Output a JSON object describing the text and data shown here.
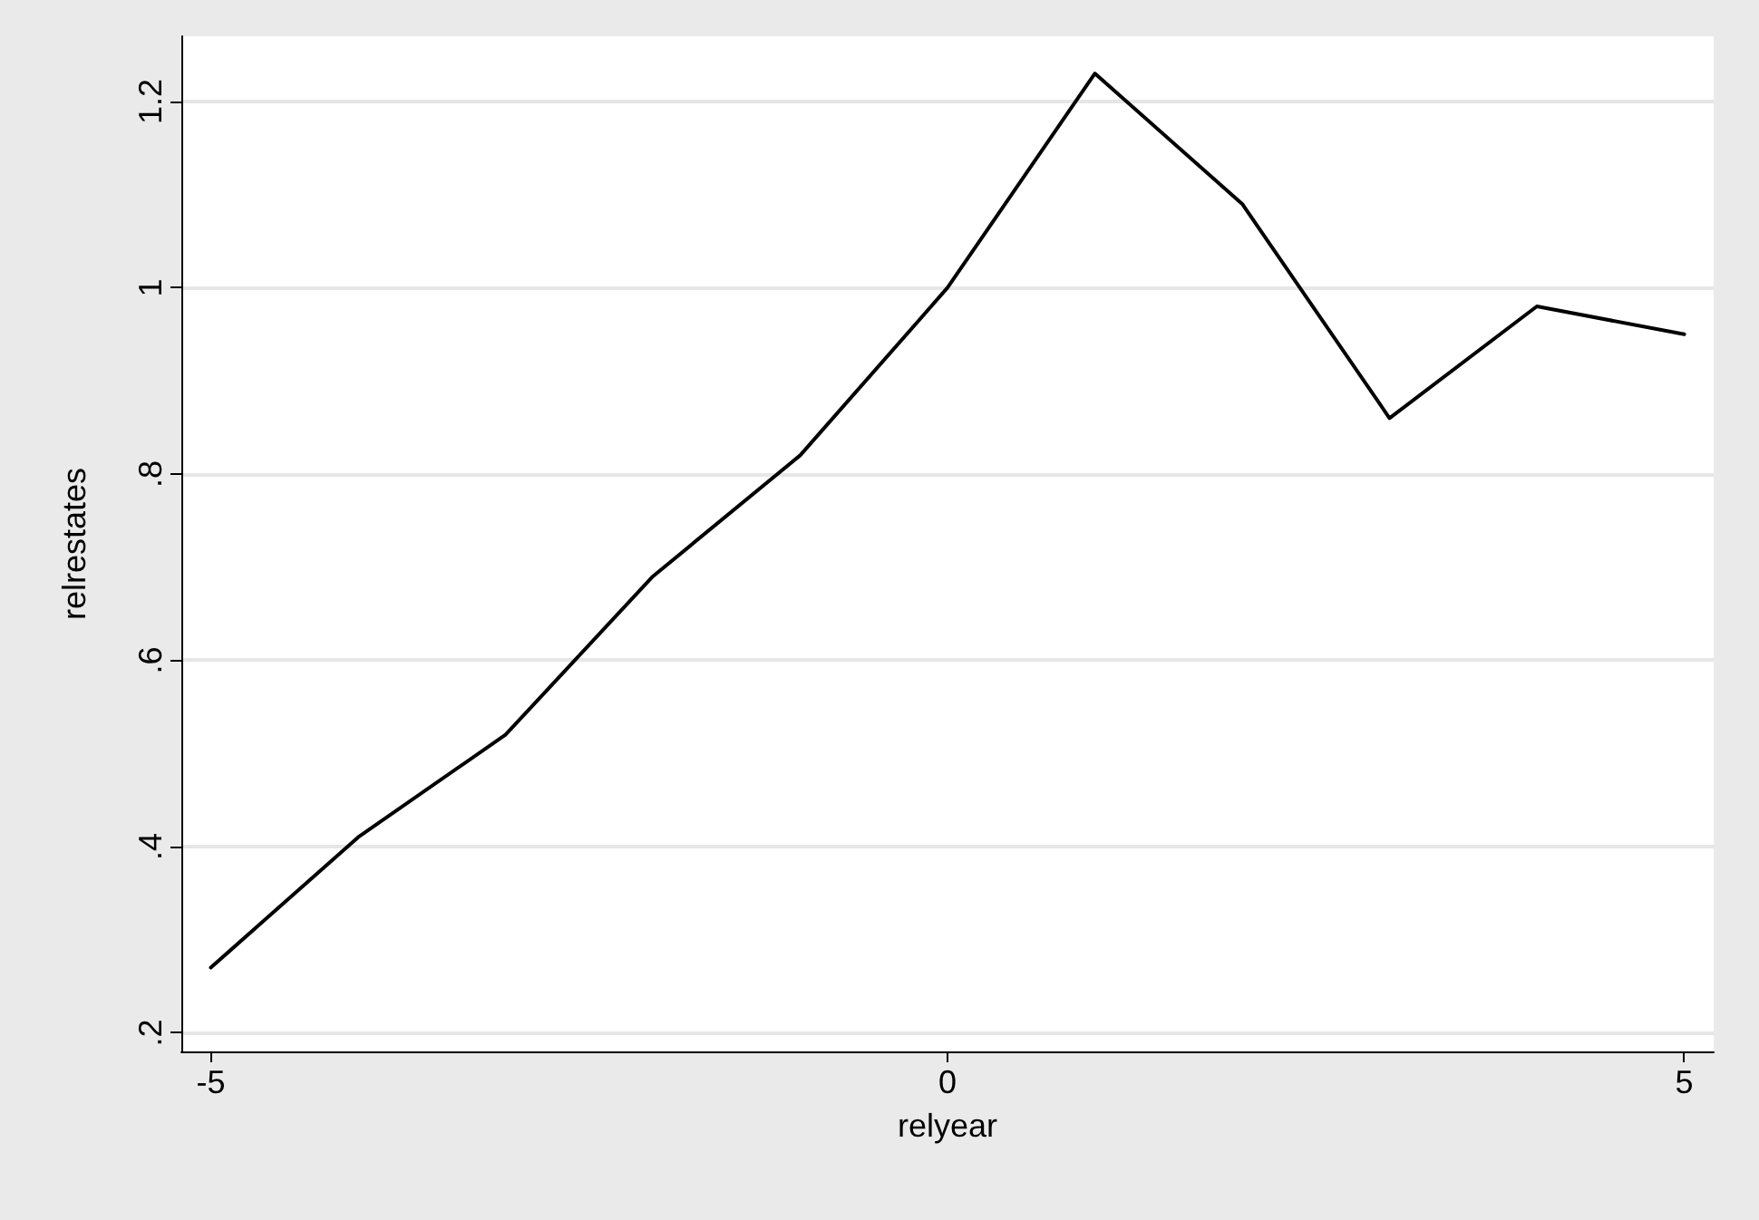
{
  "chart_data": {
    "type": "line",
    "xlabel": "relyear",
    "ylabel": "relrestates",
    "x": [
      -5,
      -4,
      -3,
      -2,
      -1,
      0,
      1,
      2,
      3,
      4,
      5
    ],
    "series": [
      {
        "color": "#000000",
        "values": [
          0.27,
          0.41,
          0.52,
          0.69,
          0.82,
          1.0,
          1.23,
          1.09,
          0.86,
          0.98,
          0.95
        ]
      }
    ],
    "xlim": [
      -5.2,
      5.2
    ],
    "ylim": [
      0.18,
      1.27
    ],
    "xticks": [
      -5,
      0,
      5
    ],
    "yticks": [
      {
        "value": 0.2,
        "label": ".2"
      },
      {
        "value": 0.4,
        "label": ".4"
      },
      {
        "value": 0.6,
        "label": ".6"
      },
      {
        "value": 0.8,
        "label": ".8"
      },
      {
        "value": 1,
        "label": "1"
      },
      {
        "value": 1.2,
        "label": "1.2"
      }
    ],
    "grid": "y",
    "marker": "none",
    "line_style": "solid"
  }
}
